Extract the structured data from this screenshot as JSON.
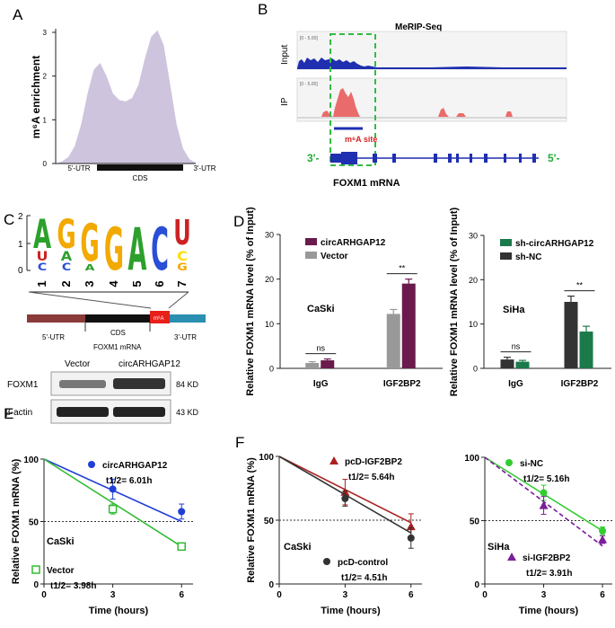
{
  "panels": {
    "A": {
      "letter": "A"
    },
    "B": {
      "letter": "B",
      "title": "MeRIP-Seq",
      "track_input": "Input",
      "track_ip": "IP",
      "scale_input": "[0 - 5.00]",
      "scale_ip": "[0 - 5.00]",
      "m6a_site": "m⁶A site",
      "strand_left": "3'-",
      "strand_right": "5'-",
      "gene": "FOXM1 mRNA"
    },
    "C": {
      "letter": "C",
      "positions": [
        "1",
        "2",
        "3",
        "4",
        "5",
        "6",
        "7"
      ],
      "segments": [
        "5'-UTR",
        "CDS",
        "m⁶A",
        "3'-UTR"
      ],
      "gene": "FOXM1 mRNA",
      "colors": {
        "A": "#2ca02c",
        "G": "#f2a900",
        "U": "#cc2222",
        "C": "#2a4fd6",
        "C_alt": "#ffdd00"
      }
    },
    "D": {
      "letter": "D"
    },
    "E": {
      "letter": "E",
      "blot_header_vector": "Vector",
      "blot_header_circ": "circARHGAP12",
      "rows": [
        {
          "name": "FOXM1",
          "kd": "84 KD"
        },
        {
          "name": "β-actin",
          "kd": "43 KD"
        }
      ]
    },
    "F": {
      "letter": "F"
    }
  },
  "chart_data": [
    {
      "id": "A",
      "type": "area",
      "ylabel": "m⁶A enrichment",
      "y_ticks": [
        "0",
        "1",
        "2",
        "3"
      ],
      "ylim": [
        0,
        3
      ],
      "x_regions": [
        "5'-UTR",
        "CDS",
        "3'-UTR"
      ],
      "profile": [
        0,
        0.05,
        0.15,
        0.4,
        0.9,
        1.6,
        2.15,
        2.3,
        2.0,
        1.6,
        1.45,
        1.42,
        1.5,
        1.8,
        2.4,
        2.9,
        3.05,
        2.7,
        1.8,
        0.9,
        0.35,
        0.1,
        0.02
      ],
      "fill": "#cfc4dd"
    },
    {
      "id": "D1",
      "type": "bar",
      "annotation": "CaSki",
      "ylabel": "Relative FOXM1 mRNA level (% of Input)",
      "ylim": [
        0,
        30
      ],
      "y_ticks": [
        "0",
        "10",
        "20",
        "30"
      ],
      "categories": [
        "IgG",
        "IGF2BP2"
      ],
      "series": [
        {
          "name": "Vector",
          "values": [
            1.2,
            12.2
          ],
          "errors": [
            0.3,
            1.0
          ],
          "color": "#999999"
        },
        {
          "name": "circARHGAP12",
          "values": [
            1.8,
            19.0
          ],
          "errors": [
            0.3,
            1.0
          ],
          "color": "#6a1a4c"
        }
      ],
      "sig": [
        "ns",
        "**"
      ]
    },
    {
      "id": "D2",
      "type": "bar",
      "annotation": "SiHa",
      "ylabel": "Relative FOXM1 mRNA level (% of Input)",
      "ylim": [
        0,
        30
      ],
      "y_ticks": [
        "0",
        "10",
        "20",
        "30"
      ],
      "categories": [
        "IgG",
        "IGF2BP2"
      ],
      "series": [
        {
          "name": "sh-NC",
          "values": [
            2.0,
            15.0
          ],
          "errors": [
            0.5,
            1.3
          ],
          "color": "#333333"
        },
        {
          "name": "sh-circARHGAP12",
          "values": [
            1.5,
            8.3
          ],
          "errors": [
            0.3,
            1.2
          ],
          "color": "#1a7a4a"
        }
      ],
      "sig": [
        "ns",
        "**"
      ]
    },
    {
      "id": "E",
      "type": "line",
      "annotation": "CaSki",
      "ylabel": "Relative FOXM1 mRNA (%)",
      "xlabel": "Time (hours)",
      "ylim": [
        0,
        100
      ],
      "xlim": [
        0,
        6.5
      ],
      "x_ticks": [
        0,
        3,
        6
      ],
      "y_ticks": [
        0,
        50,
        100
      ],
      "dashed_y": 50,
      "series": [
        {
          "name": "circARHGAP12",
          "t_half": "t1/2= 6.01h",
          "x": [
            3,
            6
          ],
          "y": [
            76,
            58
          ],
          "err": [
            8,
            6
          ],
          "fit_end": 50,
          "color": "#1f3fd6",
          "marker": "circle"
        },
        {
          "name": "Vector",
          "t_half": "t1/2= 3.98h",
          "x": [
            3,
            6
          ],
          "y": [
            60,
            30
          ],
          "err": [
            4,
            2
          ],
          "fit_end": 30,
          "color": "#33bb33",
          "marker": "open-square"
        }
      ]
    },
    {
      "id": "F1",
      "type": "line",
      "annotation": "CaSki",
      "ylabel": "Relative FOXM1 mRNA (%)",
      "xlabel": "Time (hours)",
      "ylim": [
        0,
        100
      ],
      "xlim": [
        0,
        6.5
      ],
      "x_ticks": [
        0,
        3,
        6
      ],
      "y_ticks": [
        0,
        50,
        100
      ],
      "dashed_y": 50,
      "series": [
        {
          "name": "pcD-IGF2BP2",
          "t_half": "t1/2= 5.64h",
          "x": [
            3,
            6
          ],
          "y": [
            72,
            45
          ],
          "err": [
            10,
            10
          ],
          "fit_end": 48,
          "color": "#aa1f1f",
          "marker": "triangle"
        },
        {
          "name": "pcD-control",
          "t_half": "t1/2= 4.51h",
          "x": [
            3,
            6
          ],
          "y": [
            67,
            36
          ],
          "err": [
            6,
            8
          ],
          "fit_end": 40,
          "color": "#333333",
          "marker": "circle"
        }
      ]
    },
    {
      "id": "F2",
      "type": "line",
      "annotation": "SiHa",
      "ylabel": "",
      "xlabel": "Time (hours)",
      "ylim": [
        0,
        100
      ],
      "xlim": [
        0,
        6.5
      ],
      "x_ticks": [
        0,
        3,
        6
      ],
      "y_ticks": [
        0,
        50,
        100
      ],
      "dashed_y": 50,
      "series": [
        {
          "name": "si-NC",
          "t_half": "t1/2= 5.16h",
          "x": [
            3,
            6
          ],
          "y": [
            72,
            42
          ],
          "err": [
            6,
            3
          ],
          "fit_end": 42,
          "color": "#33cc33",
          "marker": "circle",
          "dash": false
        },
        {
          "name": "si-IGF2BP2",
          "t_half": "t1/2= 3.91h",
          "x": [
            3,
            6
          ],
          "y": [
            62,
            35
          ],
          "err": [
            7,
            3
          ],
          "fit_end": 30,
          "color": "#7a1f99",
          "marker": "triangle",
          "dash": true
        }
      ]
    }
  ]
}
